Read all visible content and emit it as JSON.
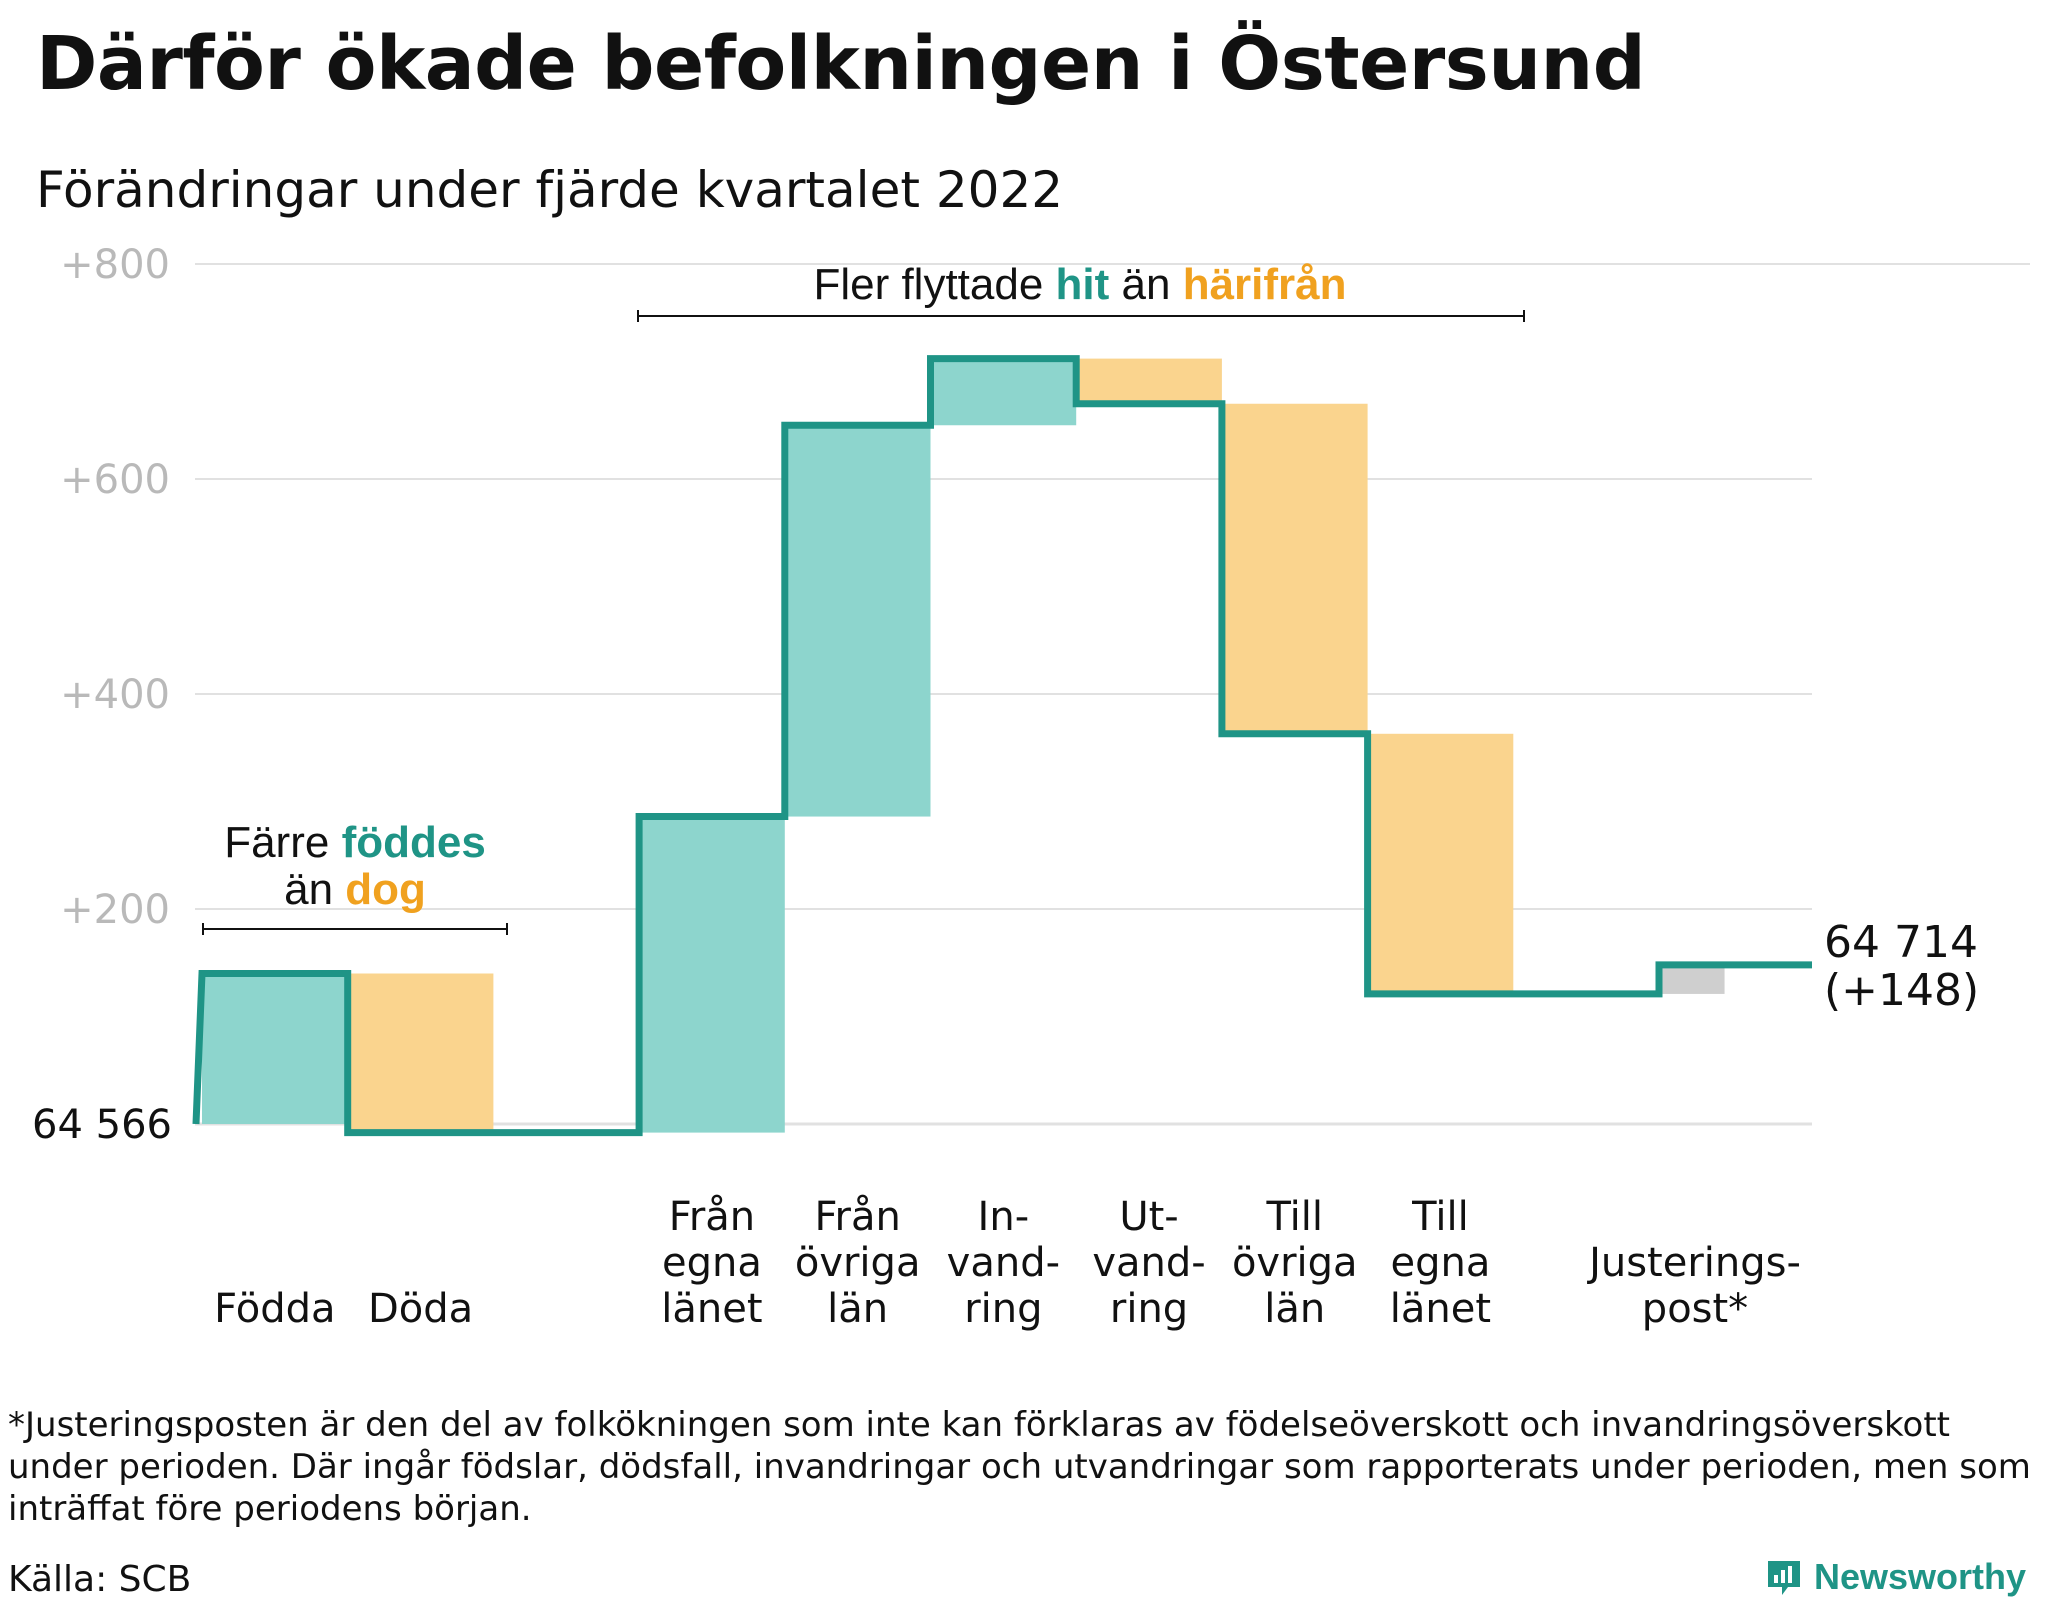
{
  "title": "Därför ökade befolkningen i Östersund",
  "subtitle": "Förändringar under fjärde kvartalet 2022",
  "footnote": "*Justeringsposten är den del av folkökningen som inte kan förklaras av födelseöverskott och invandringsöverskott under perioden. Där ingår födslar, dödsfall, invandringar och utvandringar som rapporterats under perioden, men som inträffat före periodens början.",
  "source": "Källa: SCB",
  "brand": "Newsworthy",
  "colors": {
    "increase": "#8dd5cd",
    "decrease": "#fad48e",
    "adjustment": "#cfcfcf",
    "line": "#1f9486",
    "accent_hit": "#1f9486",
    "accent_harifran": "#f0a11f",
    "grid": "#e1e1e1",
    "tick": "#b9b9b9"
  },
  "chart_data": {
    "type": "waterfall",
    "start_label": "64 566",
    "end_label_value": "64 714",
    "end_label_change": "(+148)",
    "ylim": [
      -150,
      800
    ],
    "y_ticks": [
      {
        "value": 200,
        "label": "+200"
      },
      {
        "value": 400,
        "label": "+400"
      },
      {
        "value": 600,
        "label": "+600"
      },
      {
        "value": 800,
        "label": "+800"
      }
    ],
    "categories": [
      {
        "lines": [
          "Födda"
        ],
        "start": 0,
        "end": 140,
        "kind": "increase"
      },
      {
        "lines": [
          "Döda"
        ],
        "start": 140,
        "end": -8,
        "kind": "decrease"
      },
      {
        "lines": [],
        "start": -8,
        "end": -8,
        "kind": "none"
      },
      {
        "lines": [
          "Från",
          "egna",
          "länet"
        ],
        "start": -8,
        "end": 286,
        "kind": "increase"
      },
      {
        "lines": [
          "Från",
          "övriga",
          "län"
        ],
        "start": 286,
        "end": 650,
        "kind": "increase"
      },
      {
        "lines": [
          "In-",
          "vand-",
          "ring"
        ],
        "start": 650,
        "end": 712,
        "kind": "increase"
      },
      {
        "lines": [
          "Ut-",
          "vand-",
          "ring"
        ],
        "start": 712,
        "end": 670,
        "kind": "decrease"
      },
      {
        "lines": [
          "Till",
          "övriga",
          "län"
        ],
        "start": 670,
        "end": 363,
        "kind": "decrease"
      },
      {
        "lines": [
          "Till",
          "egna",
          "länet"
        ],
        "start": 363,
        "end": 121,
        "kind": "decrease"
      },
      {
        "lines": [],
        "start": 121,
        "end": 121,
        "kind": "none"
      },
      {
        "lines": [
          "Justerings-",
          "post*"
        ],
        "start": 121,
        "end": 148,
        "kind": "adjustment"
      }
    ],
    "annotations": {
      "births": {
        "line1": "Färre",
        "line1_accent": "föddes",
        "line2": "än",
        "line2_accent": "dog"
      },
      "migration": {
        "text": "Fler flyttade",
        "accent1": "hit",
        "mid": "än",
        "accent2": "härifrån"
      }
    }
  }
}
